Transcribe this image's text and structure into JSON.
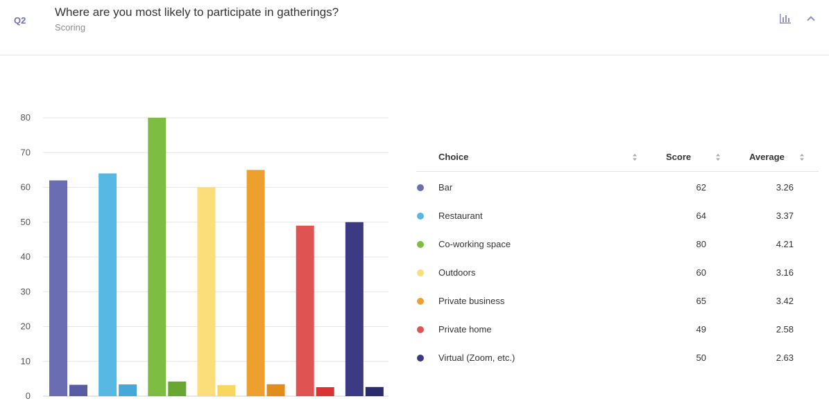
{
  "header": {
    "question_number": "Q2",
    "title": "Where are you most likely to participate in gatherings?",
    "subtitle": "Scoring",
    "chart_toggle_icon": "bar-chart-icon",
    "collapse_icon": "chevron-up-icon"
  },
  "table": {
    "columns": {
      "choice": "Choice",
      "score": "Score",
      "average": "Average"
    },
    "rows": [
      {
        "choice": "Bar",
        "score": "62",
        "average": "3.26",
        "color": "#6b6db2"
      },
      {
        "choice": "Restaurant",
        "score": "64",
        "average": "3.37",
        "color": "#56b8e3"
      },
      {
        "choice": "Co-working space",
        "score": "80",
        "average": "4.21",
        "color": "#7cbd42"
      },
      {
        "choice": "Outdoors",
        "score": "60",
        "average": "3.16",
        "color": "#fbdd79"
      },
      {
        "choice": "Private business",
        "score": "65",
        "average": "3.42",
        "color": "#eda02d"
      },
      {
        "choice": "Private home",
        "score": "49",
        "average": "2.58",
        "color": "#e05353"
      },
      {
        "choice": "Virtual (Zoom, etc.)",
        "score": "50",
        "average": "2.63",
        "color": "#3b3a82"
      }
    ]
  },
  "chart_data": {
    "type": "bar",
    "categories": [
      "Bar",
      "Restaurant",
      "Co-working space",
      "Outdoors",
      "Private business",
      "Private home",
      "Virtual (Zoom, etc.)"
    ],
    "series": [
      {
        "values": [
          62,
          64,
          80,
          60,
          65,
          49,
          50
        ]
      },
      {
        "values": [
          3.26,
          3.37,
          4.21,
          3.16,
          3.42,
          2.58,
          2.63
        ]
      }
    ],
    "colors_primary": [
      "#6b6db2",
      "#56b8e3",
      "#7cbd42",
      "#fbdd79",
      "#eda02d",
      "#e05353",
      "#3b3a82"
    ],
    "colors_secondary": [
      "#5a5ca3",
      "#45a8d6",
      "#68a733",
      "#f9d65e",
      "#e08d1e",
      "#d83434",
      "#2c2b6e"
    ],
    "ylim": [
      0,
      80
    ],
    "yticks": [
      0,
      10,
      20,
      30,
      40,
      50,
      60,
      70,
      80
    ],
    "grid": true,
    "xlabel": "",
    "ylabel": ""
  }
}
